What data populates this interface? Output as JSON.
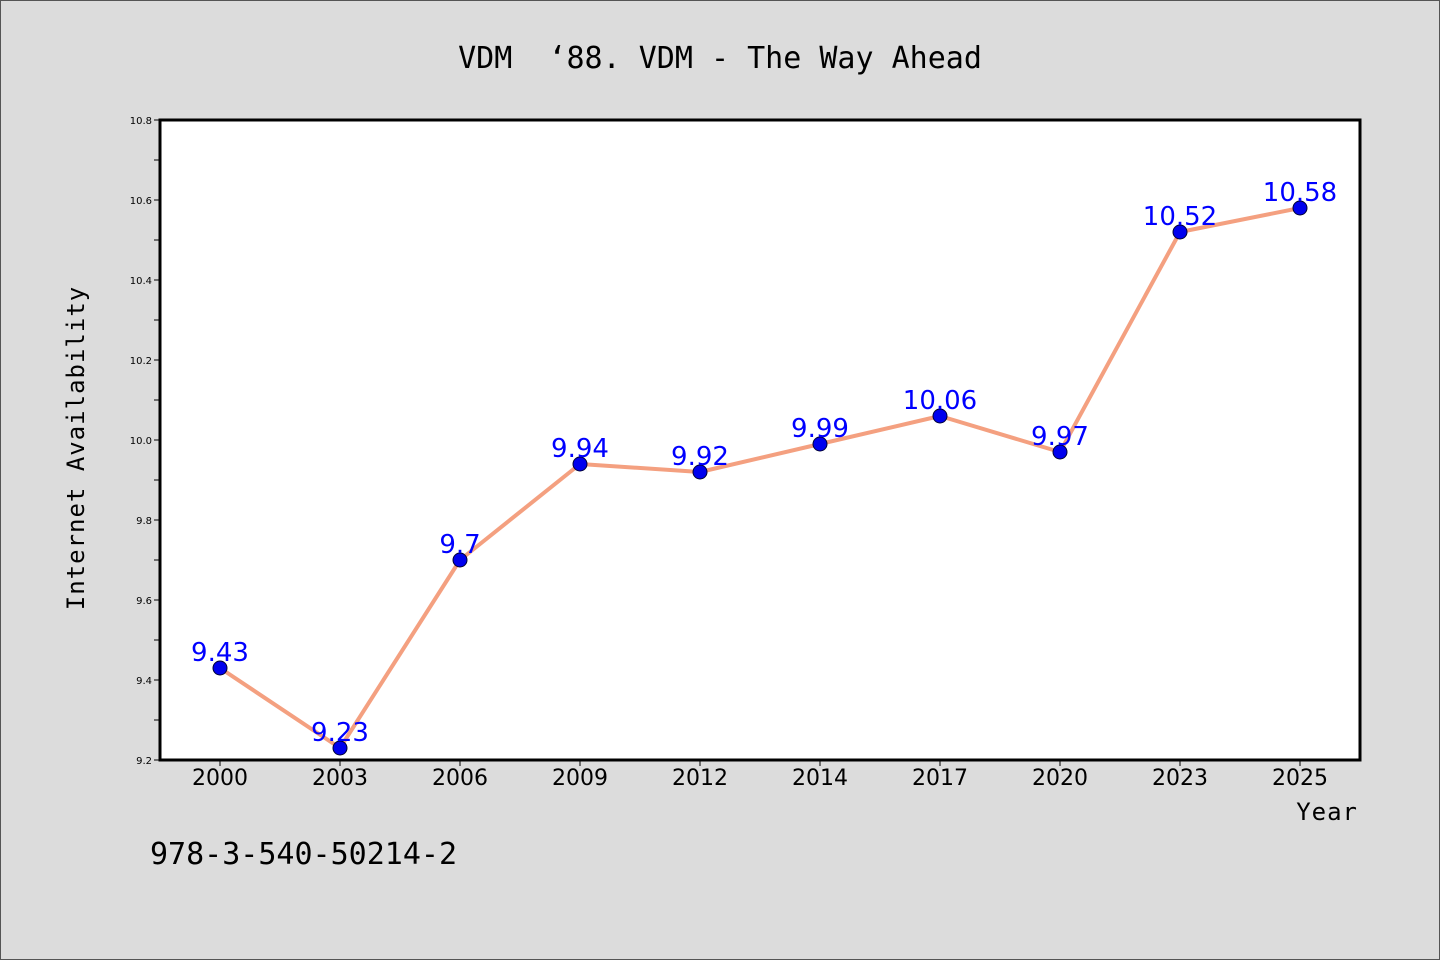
{
  "chart_data": {
    "type": "line",
    "title": "VDM  ‘88. VDM - The Way Ahead",
    "xlabel": "Year",
    "ylabel": "Internet Availability",
    "categories": [
      "2000",
      "2003",
      "2006",
      "2009",
      "2012",
      "2014",
      "2017",
      "2020",
      "2023",
      "2025"
    ],
    "series": [
      {
        "values": [
          9.43,
          9.23,
          9.7,
          9.94,
          9.92,
          9.99,
          10.06,
          9.97,
          10.52,
          10.58
        ],
        "labels": [
          "9.43",
          "9.23",
          "9.7",
          "9.94",
          "9.92",
          "9.99",
          "10.06",
          "9.97",
          "10.52",
          "10.58"
        ],
        "line_color": "#f4a080",
        "marker_color": "#0000ee"
      }
    ],
    "ylim": [
      9.2,
      10.8
    ],
    "yticks": [
      "9.2",
      "9.4",
      "9.6",
      "9.8",
      "10.0",
      "10.2",
      "10.4",
      "10.6",
      "10.8"
    ],
    "grid": false,
    "label_color": "#0000ff"
  },
  "footer": {
    "text": "978-3-540-50214-2"
  }
}
